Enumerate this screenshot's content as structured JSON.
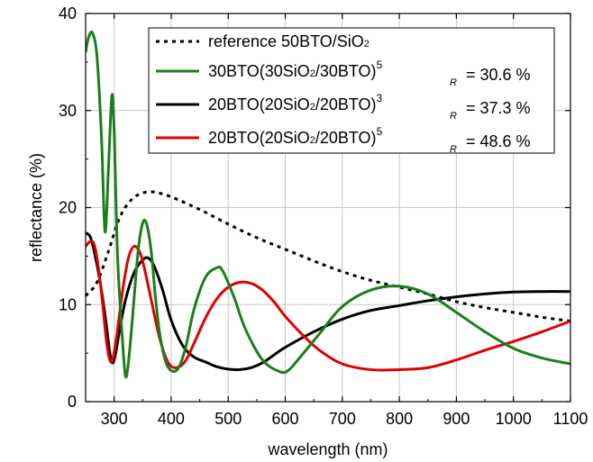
{
  "chart_data": {
    "type": "line",
    "xlabel": "wavelength (nm)",
    "ylabel": "reflectance (%)",
    "xlim": [
      250,
      1100
    ],
    "ylim": [
      0,
      40
    ],
    "xticks": [
      300,
      400,
      500,
      600,
      700,
      800,
      900,
      1000,
      1100
    ],
    "xtick_labels": [
      "300",
      "400",
      "500",
      "600",
      "700",
      "800",
      "900",
      "1000",
      "1100"
    ],
    "yticks": [
      0,
      10,
      20,
      30,
      40
    ],
    "ytick_labels": [
      "0",
      "10",
      "20",
      "30",
      "40"
    ],
    "grid": true,
    "legend_position": "top-right",
    "series": [
      {
        "name": "reference 50BTO/SiO2",
        "legend": {
          "main": "reference 50BTO/SiO",
          "sub": "2",
          "rest": "",
          "sup": "",
          "r_prefix": "",
          "r_sub": "",
          "r_value": ""
        },
        "color": "#000000",
        "style": "dotted",
        "x": [
          250,
          270,
          290,
          310,
          330,
          350,
          370,
          400,
          450,
          500,
          550,
          600,
          650,
          700,
          750,
          800,
          850,
          900,
          950,
          1000,
          1050,
          1100
        ],
        "y": [
          10.9,
          12.3,
          15.5,
          19.0,
          20.8,
          21.5,
          21.6,
          21.1,
          19.8,
          18.3,
          16.9,
          15.7,
          14.5,
          13.4,
          12.5,
          11.8,
          11.1,
          10.3,
          9.7,
          9.2,
          8.7,
          8.3
        ]
      },
      {
        "name": "30BTO(30SiO2/30BTO)5",
        "legend": {
          "main": "30BTO(30SiO",
          "sub": "2",
          "rest": "/30BTO)",
          "sup": "5",
          "r_prefix": "",
          "r_sub": "R",
          "r_value": "= 30.6 %"
        },
        "color": "#1a7f1a",
        "style": "solid",
        "x": [
          250,
          255,
          262,
          270,
          278,
          284,
          290,
          296,
          300,
          306,
          315,
          320,
          325,
          332,
          342,
          350,
          357,
          365,
          372,
          380,
          390,
          400,
          412,
          425,
          440,
          460,
          480,
          490,
          510,
          530,
          560,
          590,
          605,
          625,
          660,
          700,
          750,
          800,
          850,
          900,
          950,
          1000,
          1050,
          1100
        ],
        "y": [
          36.0,
          37.5,
          38.0,
          35.5,
          27.0,
          17.5,
          24.0,
          31.5,
          28.0,
          15.0,
          6.0,
          2.6,
          4.0,
          8.5,
          15.5,
          18.4,
          18.3,
          15.5,
          11.0,
          7.0,
          4.2,
          3.2,
          3.4,
          5.5,
          9.5,
          12.8,
          13.8,
          13.5,
          10.8,
          7.5,
          4.3,
          3.1,
          3.2,
          4.5,
          7.0,
          9.8,
          11.5,
          11.9,
          11.1,
          9.2,
          7.2,
          5.5,
          4.5,
          3.9
        ]
      },
      {
        "name": "20BTO(20SiO2/20BTO)3",
        "legend": {
          "main": "20BTO(20SiO",
          "sub": "2",
          "rest": "/20BTO)",
          "sup": "3",
          "r_prefix": "",
          "r_sub": "R",
          "r_value": "= 37.3 %"
        },
        "color": "#000000",
        "style": "solid",
        "x": [
          250,
          258,
          265,
          275,
          285,
          292,
          297,
          302,
          310,
          320,
          335,
          350,
          360,
          370,
          385,
          400,
          420,
          440,
          460,
          480,
          500,
          520,
          540,
          560,
          580,
          600,
          650,
          700,
          750,
          800,
          850,
          900,
          950,
          1000,
          1050,
          1100
        ],
        "y": [
          17.4,
          17.0,
          15.5,
          12.5,
          8.5,
          5.2,
          4.0,
          4.8,
          7.5,
          10.5,
          13.3,
          14.6,
          14.8,
          14.0,
          11.5,
          8.4,
          5.8,
          4.6,
          4.1,
          3.6,
          3.35,
          3.3,
          3.5,
          4.0,
          4.8,
          5.6,
          7.2,
          8.5,
          9.4,
          9.9,
          10.4,
          10.8,
          11.1,
          11.3,
          11.35,
          11.35
        ]
      },
      {
        "name": "20BTO(20SiO2/20BTO)5",
        "legend": {
          "main": "20BTO(20SiO",
          "sub": "2",
          "rest": "/20BTO)",
          "sup": "5",
          "r_prefix": "",
          "r_sub": "R",
          "r_value": "= 48.6 %"
        },
        "color": "#e00000",
        "style": "solid",
        "x": [
          250,
          258,
          265,
          272,
          280,
          287,
          293,
          298,
          305,
          315,
          325,
          335,
          345,
          352,
          365,
          380,
          395,
          410,
          425,
          440,
          460,
          480,
          500,
          520,
          540,
          560,
          580,
          600,
          630,
          660,
          700,
          750,
          800,
          850,
          900,
          950,
          1000,
          1050,
          1100
        ],
        "y": [
          16.0,
          16.5,
          16.2,
          14.0,
          10.0,
          6.0,
          4.2,
          4.5,
          7.0,
          11.5,
          14.8,
          16.0,
          15.4,
          14.0,
          10.5,
          6.5,
          4.0,
          3.5,
          4.2,
          6.0,
          8.6,
          10.6,
          11.8,
          12.3,
          12.2,
          11.5,
          10.3,
          8.8,
          6.9,
          5.3,
          3.9,
          3.3,
          3.3,
          3.5,
          4.3,
          5.3,
          6.2,
          7.2,
          8.3
        ]
      }
    ]
  }
}
